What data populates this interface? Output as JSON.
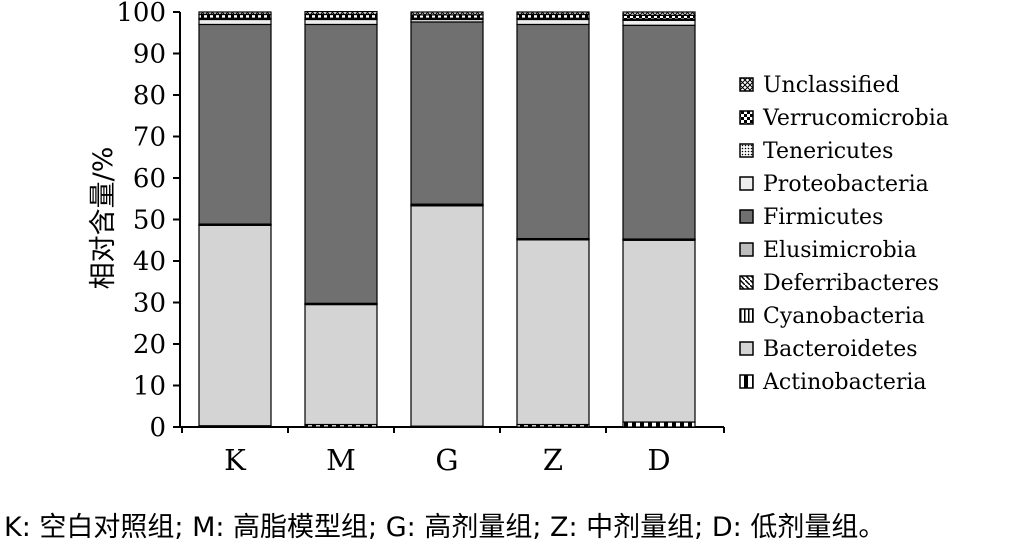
{
  "chart_data": {
    "type": "bar",
    "stacked": true,
    "categories": [
      "K",
      "M",
      "G",
      "Z",
      "D"
    ],
    "ylabel": "相对含量/%",
    "xlabel": "",
    "ylim": [
      0,
      100
    ],
    "yticks": [
      0,
      10,
      20,
      30,
      40,
      50,
      60,
      70,
      80,
      90,
      100
    ],
    "grid": false,
    "legend_position": "right",
    "series": [
      {
        "name": "Actinobacteria",
        "values": [
          0.3,
          0.6,
          0.2,
          0.6,
          1.2
        ],
        "color": "#ffffff",
        "pattern": "vhalf"
      },
      {
        "name": "Bacteroidetes",
        "values": [
          48.3,
          28.9,
          53.1,
          44.5,
          43.8
        ],
        "color": "#d4d4d4",
        "pattern": "solid"
      },
      {
        "name": "Cyanobacteria",
        "values": [
          0.1,
          0.1,
          0.1,
          0.1,
          0.1
        ],
        "color": "#ffffff",
        "pattern": "vlines"
      },
      {
        "name": "Deferribacteres",
        "values": [
          0.1,
          0.1,
          0.2,
          0.1,
          0.1
        ],
        "color": "#ffffff",
        "pattern": "diag"
      },
      {
        "name": "Elusimicrobia",
        "values": [
          0.1,
          0.1,
          0.1,
          0.1,
          0.1
        ],
        "color": "#bdbdbd",
        "pattern": "solid"
      },
      {
        "name": "Firmicutes",
        "values": [
          48.1,
          67.2,
          43.9,
          51.6,
          51.5
        ],
        "color": "#707070",
        "pattern": "solid"
      },
      {
        "name": "Proteobacteria",
        "values": [
          1.2,
          1.2,
          0.6,
          1.2,
          1.2
        ],
        "color": "#eeeeee",
        "pattern": "solid"
      },
      {
        "name": "Tenericutes",
        "values": [
          0.3,
          0.3,
          0.3,
          0.3,
          0.3
        ],
        "color": "#ffffff",
        "pattern": "dots"
      },
      {
        "name": "Verrucomicrobia",
        "values": [
          0.9,
          0.9,
          0.8,
          0.9,
          0.9
        ],
        "color": "#ffffff",
        "pattern": "checker"
      },
      {
        "name": "Unclassified",
        "values": [
          0.6,
          0.7,
          0.7,
          0.6,
          0.8
        ],
        "color": "#ffffff",
        "pattern": "cross"
      }
    ]
  },
  "caption": "K: 空白对照组; M: 高脂模型组; G: 高剂量组; Z: 中剂量组; D: 低剂量组。"
}
